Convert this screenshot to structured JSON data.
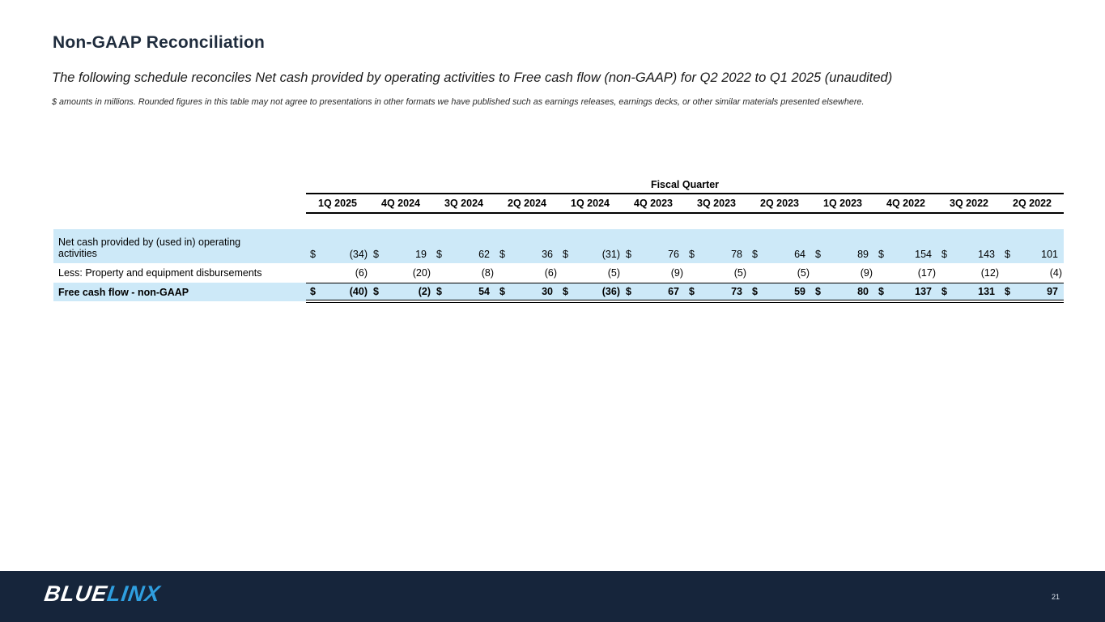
{
  "slide": {
    "title": "Non-GAAP Reconciliation",
    "subtitle": "The following schedule reconciles Net cash provided by operating activities to Free cash flow (non-GAAP) for Q2 2022 to Q1 2025 (unaudited)",
    "footnote": "$ amounts in millions.  Rounded figures in this table may not agree to presentations in other formats we have published such as earnings releases, earnings decks, or other similar materials presented elsewhere.",
    "page_number": "21"
  },
  "logo": {
    "part1": "BLUE",
    "part2": "LINX"
  },
  "colors": {
    "title_navy": "#1f2c3d",
    "accent_blue": "#2f9fe0",
    "row_highlight": "#cde9f8",
    "footer_bg": "#16253b"
  },
  "table": {
    "group_header": "Fiscal Quarter",
    "currency_symbol": "$",
    "columns": [
      "1Q 2025",
      "4Q 2024",
      "3Q 2024",
      "2Q 2024",
      "1Q 2024",
      "4Q 2023",
      "3Q 2023",
      "2Q 2023",
      "1Q 2023",
      "4Q 2022",
      "3Q 2022",
      "2Q 2022"
    ],
    "rows": [
      {
        "label": "Net cash provided by (used in) operating activities",
        "highlight": true,
        "bold": false,
        "show_dollar": true,
        "values": [
          "(34)",
          "19",
          "62",
          "36",
          "(31)",
          "76",
          "78",
          "64",
          "89",
          "154",
          "143",
          "101"
        ]
      },
      {
        "label": "Less: Property and equipment disbursements",
        "highlight": false,
        "bold": false,
        "show_dollar": false,
        "values": [
          "(6)",
          "(20)",
          "(8)",
          "(6)",
          "(5)",
          "(9)",
          "(5)",
          "(5)",
          "(9)",
          "(17)",
          "(12)",
          "(4)"
        ]
      },
      {
        "label": "Free cash flow - non-GAAP",
        "highlight": true,
        "bold": true,
        "show_dollar": true,
        "values": [
          "(40)",
          "(2)",
          "54",
          "30",
          "(36)",
          "67",
          "73",
          "59",
          "80",
          "137",
          "131",
          "97"
        ]
      }
    ]
  }
}
